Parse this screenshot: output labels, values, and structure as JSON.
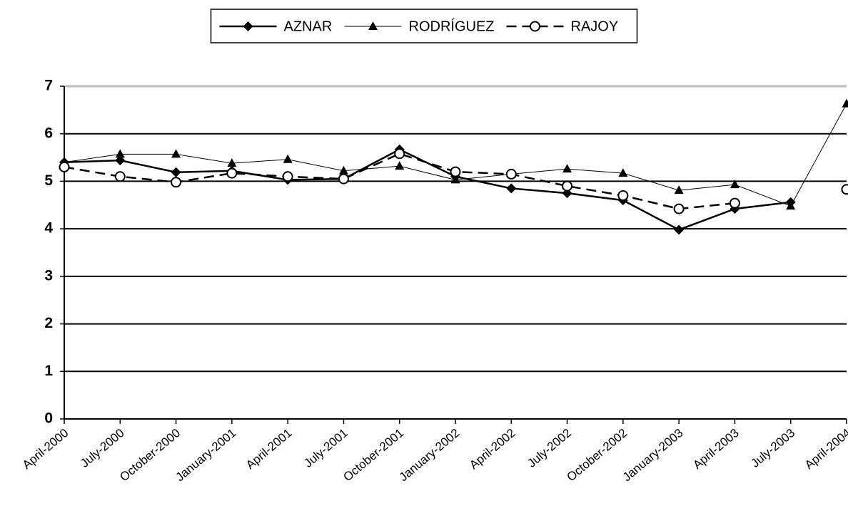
{
  "chart_data": {
    "type": "line",
    "categories": [
      "April-2000",
      "July-2000",
      "October-2000",
      "January-2001",
      "April-2001",
      "July-2001",
      "October-2001",
      "January-2002",
      "April-2002",
      "July-2002",
      "October-2002",
      "January-2003",
      "April-2003",
      "July-2003",
      "April-2004"
    ],
    "series": [
      {
        "name": "AZNAR",
        "color": "#000000",
        "marker": "diamond",
        "line_style": "solid",
        "values": [
          5.4,
          5.44,
          5.19,
          5.22,
          5.03,
          5.05,
          5.67,
          5.1,
          4.85,
          4.75,
          4.6,
          3.98,
          4.42,
          4.56,
          null
        ]
      },
      {
        "name": "RODRÍGUEZ",
        "color": "#000000",
        "marker": "triangle",
        "line_style": "thin",
        "values": [
          5.4,
          5.57,
          5.57,
          5.38,
          5.46,
          5.22,
          5.32,
          5.03,
          5.15,
          5.26,
          5.17,
          4.81,
          4.93,
          4.48,
          6.63
        ]
      },
      {
        "name": "RAJOY",
        "color": "#000000",
        "marker": "circle",
        "line_style": "dashed",
        "values": [
          5.3,
          5.1,
          4.98,
          5.17,
          5.1,
          5.05,
          5.58,
          5.2,
          5.15,
          4.9,
          4.7,
          4.42,
          4.54,
          null,
          4.83
        ]
      }
    ],
    "ylim": [
      0,
      7
    ],
    "yticks": [
      0,
      1,
      2,
      3,
      4,
      5,
      6,
      7
    ],
    "grid": true,
    "legend": "top"
  }
}
